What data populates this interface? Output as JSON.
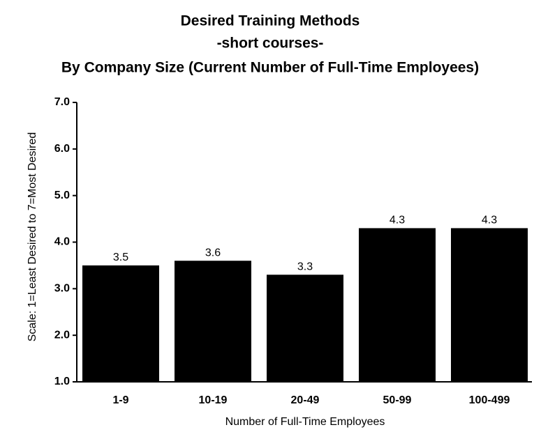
{
  "chart_data": {
    "type": "bar",
    "title": "Desired Training Methods",
    "subtitle": [
      "-short courses-",
      "By Company Size (Current Number of Full-Time Employees)"
    ],
    "x_label": "Number of Full-Time Employees",
    "y_label": "Scale: 1=Least Desired to 7=Most Desired",
    "categories": [
      "1-9",
      "10-19",
      "20-49",
      "50-99",
      "100-499"
    ],
    "values": [
      3.5,
      3.6,
      3.3,
      4.3,
      4.3
    ],
    "color": "#000000",
    "ylim": [
      1,
      7
    ],
    "yticks": [
      {
        "value": 1,
        "label": "1.0"
      },
      {
        "value": 2,
        "label": "2.0"
      },
      {
        "value": 3,
        "label": "3.0"
      },
      {
        "value": 4,
        "label": "4.0"
      },
      {
        "value": 5,
        "label": "5.0"
      },
      {
        "value": 6,
        "label": "6.0"
      },
      {
        "value": 7,
        "label": "7.0"
      }
    ],
    "grid": false
  }
}
